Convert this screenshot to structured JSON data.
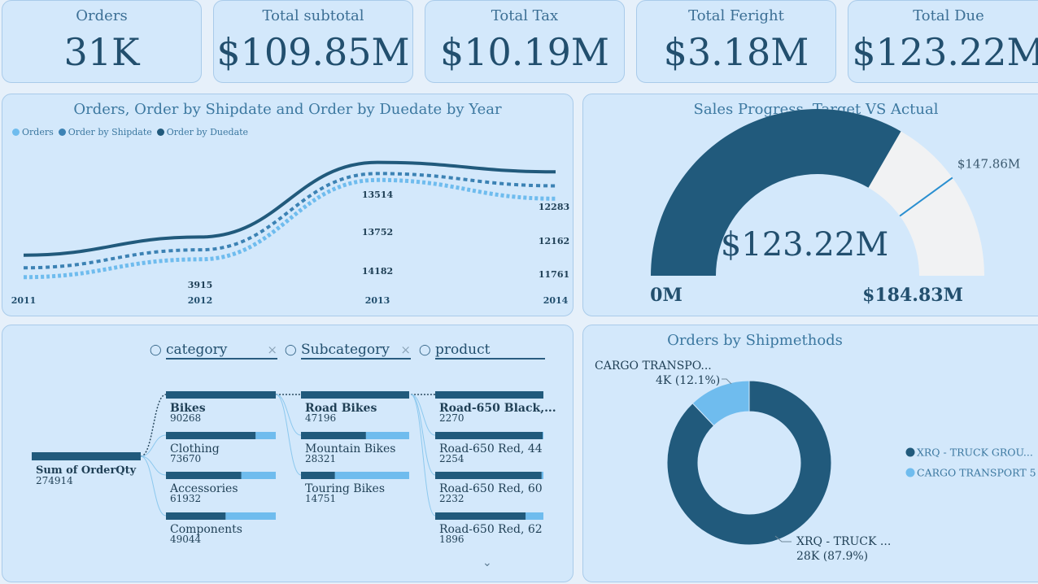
{
  "kpis": [
    {
      "label": "Orders",
      "value": "31K"
    },
    {
      "label": "Total subtotal",
      "value": "$109.85M"
    },
    {
      "label": "Total Tax",
      "value": "$10.19M"
    },
    {
      "label": "Total Feright",
      "value": "$3.18M"
    },
    {
      "label": "Total Due",
      "value": "$123.22M"
    }
  ],
  "line_panel": {
    "title": "Orders, Order by Shipdate and Order by Duedate by Year",
    "legend": [
      "Orders",
      "Order by Shipdate",
      "Order by Duedate"
    ]
  },
  "gauge": {
    "title": "Sales Progress -Target VS Actual",
    "value_label": "$123.22M",
    "min_label": "0M",
    "max_label": "$184.83M",
    "target_label": "$147.86M",
    "value": 123.22,
    "target": 147.86,
    "max": 184.83
  },
  "tree": {
    "headers": [
      "category",
      "Subcategory",
      "product"
    ],
    "root": {
      "label": "Sum of OrderQty",
      "value": "274914"
    },
    "categories": [
      {
        "label": "Bikes",
        "value": "90268",
        "fraction": 1.0,
        "bold": true
      },
      {
        "label": "Clothing",
        "value": "73670",
        "fraction": 0.816,
        "bold": false
      },
      {
        "label": "Accessories",
        "value": "61932",
        "fraction": 0.686,
        "bold": false
      },
      {
        "label": "Components",
        "value": "49044",
        "fraction": 0.543,
        "bold": false
      }
    ],
    "subcategories": [
      {
        "label": "Road Bikes",
        "value": "47196",
        "fraction": 1.0,
        "bold": true
      },
      {
        "label": "Mountain Bikes",
        "value": "28321",
        "fraction": 0.6,
        "bold": false
      },
      {
        "label": "Touring Bikes",
        "value": "14751",
        "fraction": 0.313,
        "bold": false
      }
    ],
    "products": [
      {
        "label": "Road-650 Black,...",
        "value": "2270",
        "fraction": 1.0,
        "bold": true
      },
      {
        "label": "Road-650 Red, 44",
        "value": "2254",
        "fraction": 0.993,
        "bold": false
      },
      {
        "label": "Road-650 Red, 60",
        "value": "2232",
        "fraction": 0.983,
        "bold": false
      },
      {
        "label": "Road-650 Red, 62",
        "value": "1896",
        "fraction": 0.835,
        "bold": false
      }
    ]
  },
  "donut": {
    "title": "Orders by Shipmethods",
    "slices": [
      {
        "name": "XRQ - TRUCK GROU...",
        "short": "XRQ - TRUCK ...",
        "label": "28K (87.9%)",
        "pct": 87.9,
        "color": "#215a7c"
      },
      {
        "name": "CARGO TRANSPORT 5",
        "short": "CARGO TRANSPO...",
        "label": "4K (12.1%)",
        "pct": 12.1,
        "color": "#6fbcee"
      }
    ]
  },
  "chart_data": {
    "type": "line",
    "title": "Orders, Order by Shipdate and Order by Duedate by Year",
    "x": [
      "2011",
      "2012",
      "2013",
      "2014"
    ],
    "series": [
      {
        "name": "Orders",
        "values": [
          1607,
          3915,
          14182,
          11761
        ]
      },
      {
        "name": "Order by Shipdate",
        "values": [
          1550,
          3880,
          13752,
          12162
        ]
      },
      {
        "name": "Order by Duedate",
        "values": [
          1500,
          3850,
          13514,
          12283
        ]
      }
    ],
    "data_labels": [
      {
        "series": "Order by Duedate",
        "x": "2013",
        "text": "13514"
      },
      {
        "series": "Order by Duedate",
        "x": "2014",
        "text": "12283"
      },
      {
        "series": "Order by Shipdate",
        "x": "2013",
        "text": "13752"
      },
      {
        "series": "Order by Shipdate",
        "x": "2014",
        "text": "12162"
      },
      {
        "series": "Orders",
        "x": "2012",
        "text": "3915"
      },
      {
        "series": "Orders",
        "x": "2013",
        "text": "14182"
      },
      {
        "series": "Orders",
        "x": "2014",
        "text": "11761"
      }
    ],
    "colors": {
      "Orders": "#6fbcee",
      "Order by Shipdate": "#3c82b4",
      "Order by Duedate": "#215a7c"
    },
    "legend_position": "top-left",
    "grid": false
  }
}
